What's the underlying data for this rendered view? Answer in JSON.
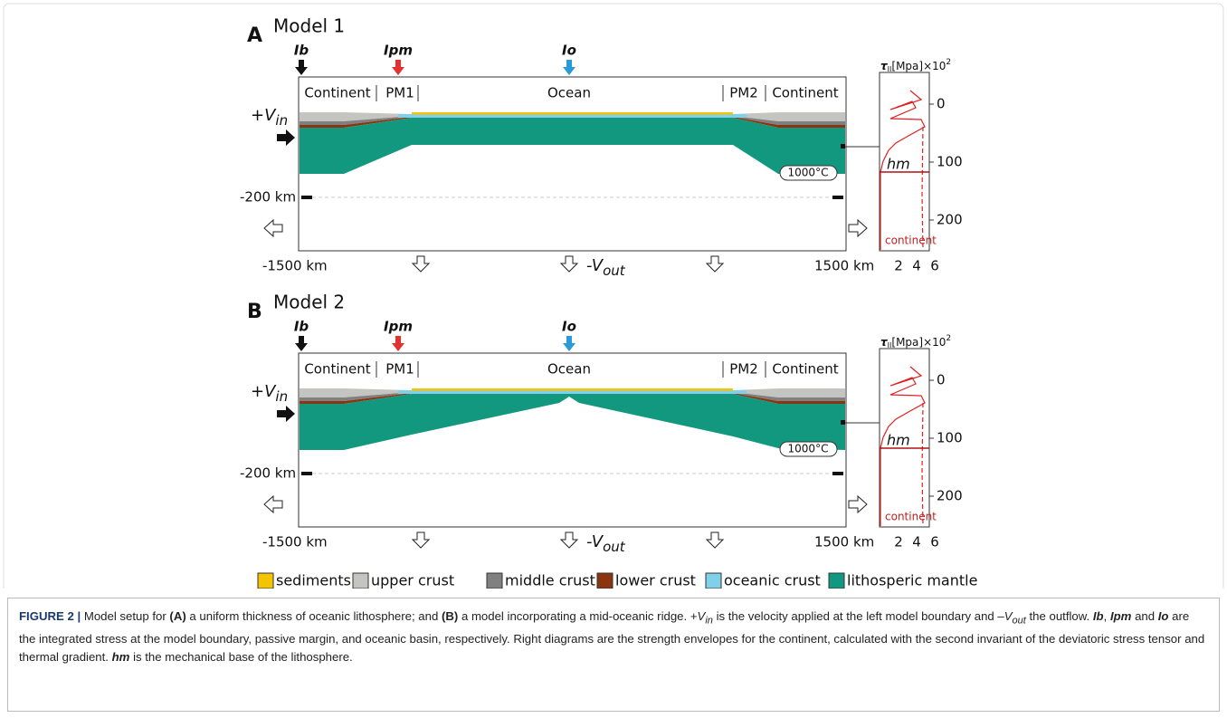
{
  "panels": [
    {
      "letter": "A",
      "title": "Model 1",
      "markers": [
        "Ib",
        "Ipm",
        "Io"
      ],
      "regions": [
        "Continent",
        "PM1",
        "Ocean",
        "PM2",
        "Continent"
      ],
      "v_in": {
        "symbol": "+V",
        "sub": "in"
      },
      "depth_label": "-200 km",
      "temperature": "1000°C",
      "x_left": "-1500 km",
      "x_right": "1500 km",
      "v_out": {
        "symbol": "-V",
        "sub": "out"
      },
      "envelope": {
        "axis_symbol": "τ",
        "axis_sub": "II",
        "axis_unit": "[Mpa]×10",
        "axis_exp": "2",
        "yticks": [
          0,
          100,
          200
        ],
        "xticks": [
          2,
          4,
          6
        ],
        "hm": "hm",
        "label": "continent"
      }
    },
    {
      "letter": "B",
      "title": "Model 2",
      "markers": [
        "Ib",
        "Ipm",
        "Io"
      ],
      "regions": [
        "Continent",
        "PM1",
        "Ocean",
        "PM2",
        "Continent"
      ],
      "v_in": {
        "symbol": "+V",
        "sub": "in"
      },
      "depth_label": "-200 km",
      "temperature": "1000°C",
      "x_left": "-1500 km",
      "x_right": "1500 km",
      "v_out": {
        "symbol": "-V",
        "sub": "out"
      },
      "envelope": {
        "axis_symbol": "τ",
        "axis_sub": "II",
        "axis_unit": "[Mpa]×10",
        "axis_exp": "2",
        "yticks": [
          0,
          100,
          200
        ],
        "xticks": [
          2,
          4,
          6
        ],
        "hm": "hm",
        "label": "continent"
      }
    }
  ],
  "legend": [
    "sediments",
    "upper crust",
    "middle crust",
    "lower crust",
    "oceanic crust",
    "lithosperic mantle"
  ],
  "caption": {
    "parts": [
      "FIGURE 2 |",
      " Model setup for ",
      "(A)",
      " a uniform thickness of oceanic lithosphere; and ",
      "(B)",
      " a model incorporating a mid-oceanic ridge. +",
      "V",
      "in",
      " is the velocity applied at the left model boundary and –",
      "V",
      "out",
      " the outflow. ",
      "Ib",
      ", ",
      "Ipm",
      " and ",
      "Io",
      " are the integrated stress at the model boundary, passive margin, and oceanic basin, respectively. Right diagrams are the strength envelopes for the continent, calculated with the second invariant of the deviatoric stress tensor and thermal gradient. ",
      "hm",
      " is the mechanical base of the lithosphere."
    ]
  }
}
